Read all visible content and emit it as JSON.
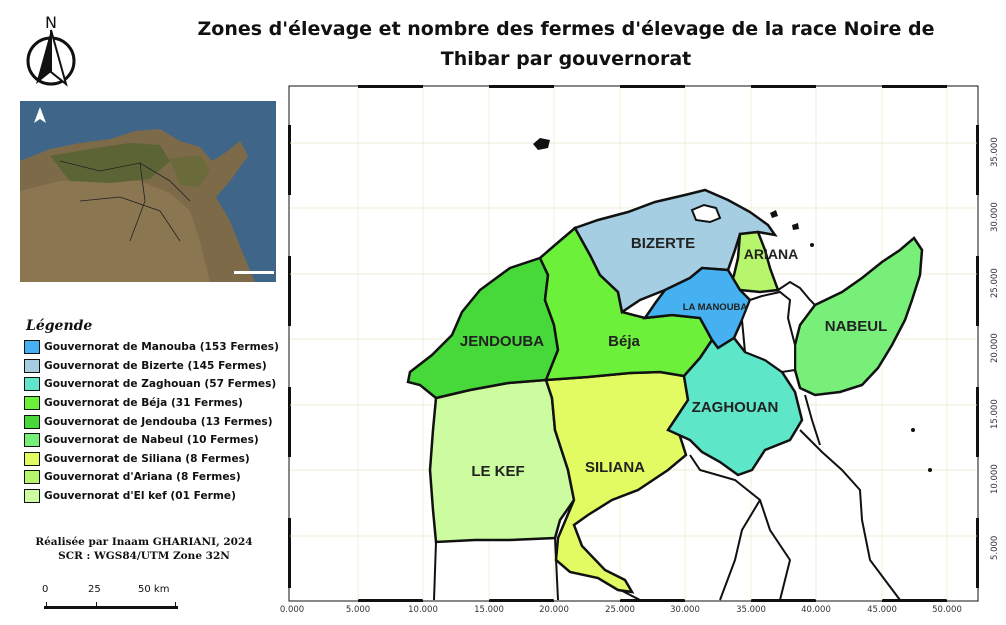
{
  "map": {
    "title_line1": "Zones d'élevage et nombre des fermes d'élevage de la race Noire de",
    "title_line2": "Thibar par gouvernorat",
    "north_label": "N",
    "credits_line1": "Réalisée par Inaam GHARIANI, 2024",
    "credits_line2": "SCR : WGS84/UTM Zone 32N"
  },
  "legend": {
    "title": "Légende",
    "items": [
      {
        "label": "Gouvernorat de Manouba (153 Fermes)",
        "color": "#45b1f0"
      },
      {
        "label": "Gouvernorat de Bizerte (145 Fermes)",
        "color": "#a6cee3"
      },
      {
        "label": "Gouvernorat de Zaghouan (57 Fermes)",
        "color": "#5ee6c9"
      },
      {
        "label": "Gouvernorat de Béja (31 Fermes)",
        "color": "#6cf03a"
      },
      {
        "label": "Gouvernorat de Jendouba (13 Fermes)",
        "color": "#47d93a"
      },
      {
        "label": "Gouvernorat de Nabeul (10 Fermes)",
        "color": "#78ef78"
      },
      {
        "label": "Gouvernorat de Siliana (8 Fermes)",
        "color": "#e3fb62"
      },
      {
        "label": "Gouvernorat d'Ariana (8 Fermes)",
        "color": "#b6f56c"
      },
      {
        "label": "Gouvernorat d'El kef (01 Ferme)",
        "color": "#ccfba0"
      }
    ]
  },
  "regions": {
    "bizerte": "BIZERTE",
    "ariana": "ARIANA",
    "manouba": "LA MANOUBA",
    "nabeul": "NABEUL",
    "jendouba": "JENDOUBA",
    "beja": "Béja",
    "zaghouan": "ZAGHOUAN",
    "lekef": "LE KEF",
    "siliana": "SILIANA"
  },
  "scale": {
    "t0": "0",
    "t1": "25",
    "t2": "50 km"
  },
  "axis": {
    "x_ticks": [
      "0.000",
      "5.000",
      "10.000",
      "15.000",
      "20.000",
      "25.000",
      "30.000",
      "35.000",
      "40.000",
      "45.000",
      "50.000"
    ],
    "y_ticks": [
      "5.000",
      "10.000",
      "15.000",
      "20.000",
      "25.000",
      "30.000",
      "35.000"
    ]
  }
}
